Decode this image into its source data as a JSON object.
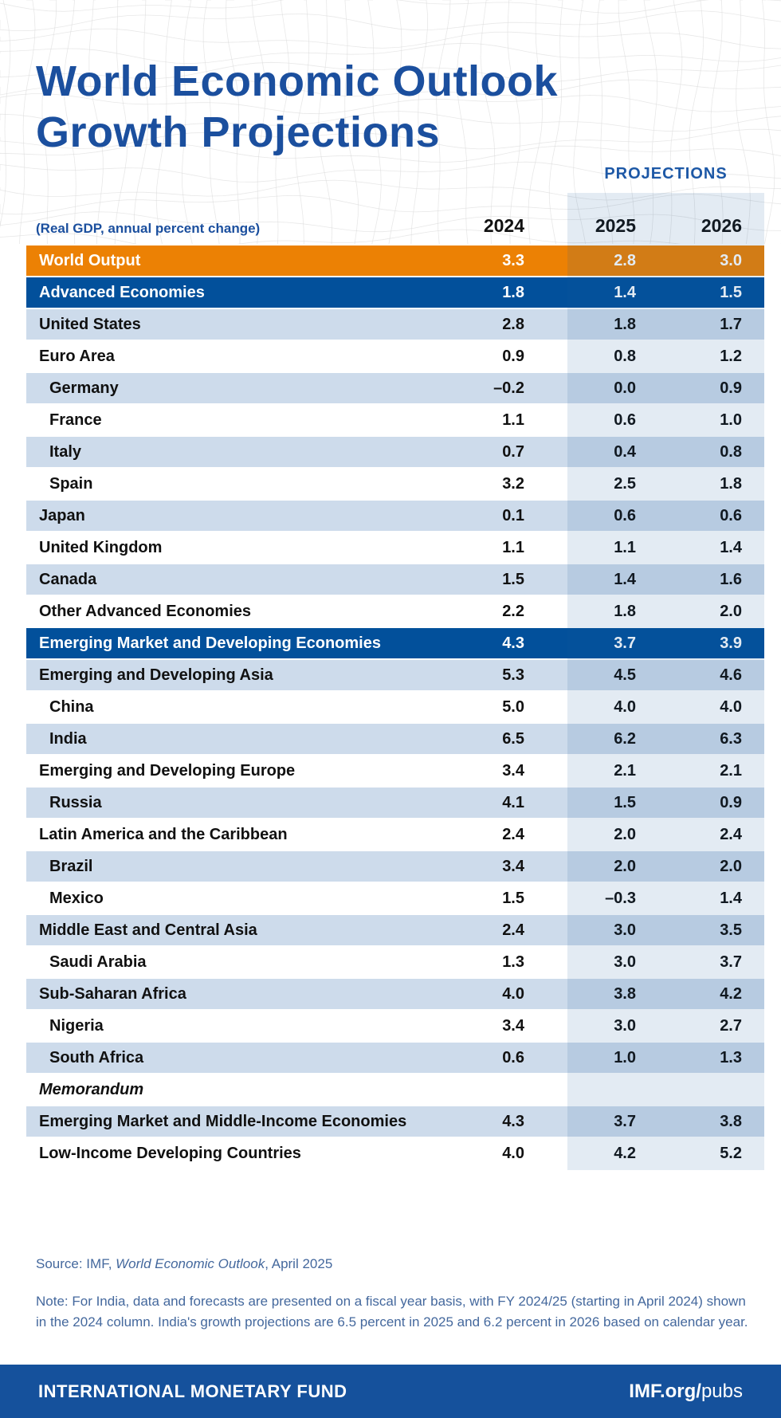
{
  "header": {
    "title_line1": "World Economic Outlook",
    "title_line2": "Growth Projections",
    "projections_label": "PROJECTIONS"
  },
  "colors": {
    "accent_blue": "#1B4F9E",
    "orange_row": "#EC8104",
    "blue_row": "#02509B",
    "light_row": "#CDDBEB",
    "projection_band": "rgba(26,87,153,0.12)",
    "footer_bar": "#15519C",
    "note_text": "#44689D"
  },
  "chart_data": {
    "type": "table",
    "title": "World Economic Outlook Growth Projections",
    "subtitle": "(Real GDP, annual percent change)",
    "columns": [
      "2024",
      "2025",
      "2026"
    ],
    "projection_columns": [
      "2025",
      "2026"
    ],
    "rows": [
      {
        "label": "World Output",
        "style": "orange",
        "indent": false,
        "values": [
          "3.3",
          "2.8",
          "3.0"
        ]
      },
      {
        "label": "Advanced Economies",
        "style": "blue",
        "indent": false,
        "values": [
          "1.8",
          "1.4",
          "1.5"
        ]
      },
      {
        "label": "United States",
        "style": "light",
        "indent": false,
        "values": [
          "2.8",
          "1.8",
          "1.7"
        ]
      },
      {
        "label": "Euro Area",
        "style": "white",
        "indent": false,
        "values": [
          "0.9",
          "0.8",
          "1.2"
        ]
      },
      {
        "label": "Germany",
        "style": "light",
        "indent": true,
        "values": [
          "–0.2",
          "0.0",
          "0.9"
        ]
      },
      {
        "label": "France",
        "style": "white",
        "indent": true,
        "values": [
          "1.1",
          "0.6",
          "1.0"
        ]
      },
      {
        "label": "Italy",
        "style": "light",
        "indent": true,
        "values": [
          "0.7",
          "0.4",
          "0.8"
        ]
      },
      {
        "label": "Spain",
        "style": "white",
        "indent": true,
        "values": [
          "3.2",
          "2.5",
          "1.8"
        ]
      },
      {
        "label": "Japan",
        "style": "light",
        "indent": false,
        "values": [
          "0.1",
          "0.6",
          "0.6"
        ]
      },
      {
        "label": "United Kingdom",
        "style": "white",
        "indent": false,
        "values": [
          "1.1",
          "1.1",
          "1.4"
        ]
      },
      {
        "label": "Canada",
        "style": "light",
        "indent": false,
        "values": [
          "1.5",
          "1.4",
          "1.6"
        ]
      },
      {
        "label": "Other Advanced Economies",
        "style": "white",
        "indent": false,
        "values": [
          "2.2",
          "1.8",
          "2.0"
        ]
      },
      {
        "label": "Emerging Market and Developing Economies",
        "style": "blue",
        "indent": false,
        "values": [
          "4.3",
          "3.7",
          "3.9"
        ]
      },
      {
        "label": "Emerging and Developing Asia",
        "style": "light",
        "indent": false,
        "values": [
          "5.3",
          "4.5",
          "4.6"
        ]
      },
      {
        "label": "China",
        "style": "white",
        "indent": true,
        "values": [
          "5.0",
          "4.0",
          "4.0"
        ]
      },
      {
        "label": "India",
        "style": "light",
        "indent": true,
        "values": [
          "6.5",
          "6.2",
          "6.3"
        ]
      },
      {
        "label": "Emerging and Developing Europe",
        "style": "white",
        "indent": false,
        "values": [
          "3.4",
          "2.1",
          "2.1"
        ]
      },
      {
        "label": "Russia",
        "style": "light",
        "indent": true,
        "values": [
          "4.1",
          "1.5",
          "0.9"
        ]
      },
      {
        "label": "Latin America and the Caribbean",
        "style": "white",
        "indent": false,
        "values": [
          "2.4",
          "2.0",
          "2.4"
        ]
      },
      {
        "label": "Brazil",
        "style": "light",
        "indent": true,
        "values": [
          "3.4",
          "2.0",
          "2.0"
        ]
      },
      {
        "label": "Mexico",
        "style": "white",
        "indent": true,
        "values": [
          "1.5",
          "–0.3",
          "1.4"
        ]
      },
      {
        "label": "Middle East and Central Asia",
        "style": "light",
        "indent": false,
        "values": [
          "2.4",
          "3.0",
          "3.5"
        ]
      },
      {
        "label": "Saudi Arabia",
        "style": "white",
        "indent": true,
        "values": [
          "1.3",
          "3.0",
          "3.7"
        ]
      },
      {
        "label": "Sub-Saharan Africa",
        "style": "light",
        "indent": false,
        "values": [
          "4.0",
          "3.8",
          "4.2"
        ]
      },
      {
        "label": "Nigeria",
        "style": "white",
        "indent": true,
        "values": [
          "3.4",
          "3.0",
          "2.7"
        ]
      },
      {
        "label": "South Africa",
        "style": "light",
        "indent": true,
        "values": [
          "0.6",
          "1.0",
          "1.3"
        ]
      },
      {
        "label": "Memorandum",
        "style": "memo",
        "indent": false,
        "values": []
      },
      {
        "label": "Emerging Market and Middle-Income Economies",
        "style": "light",
        "indent": false,
        "values": [
          "4.3",
          "3.7",
          "3.8"
        ]
      },
      {
        "label": "Low-Income Developing Countries",
        "style": "white",
        "indent": false,
        "values": [
          "4.0",
          "4.2",
          "5.2"
        ]
      }
    ]
  },
  "footer": {
    "source": {
      "prefix": "Source: IMF, ",
      "italic": "World Economic Outlook",
      "suffix": ", April 2025"
    },
    "note": "Note: For India, data and forecasts are presented on a fiscal year basis, with FY 2024/25 (starting in April 2024) shown in the 2024 column. India's growth projections are 6.5 percent in 2025 and 6.2 percent in 2026 based on calendar year.",
    "bar": {
      "org": "INTERNATIONAL MONETARY FUND",
      "url_bold": "IMF.org/",
      "url_light": "pubs"
    }
  }
}
